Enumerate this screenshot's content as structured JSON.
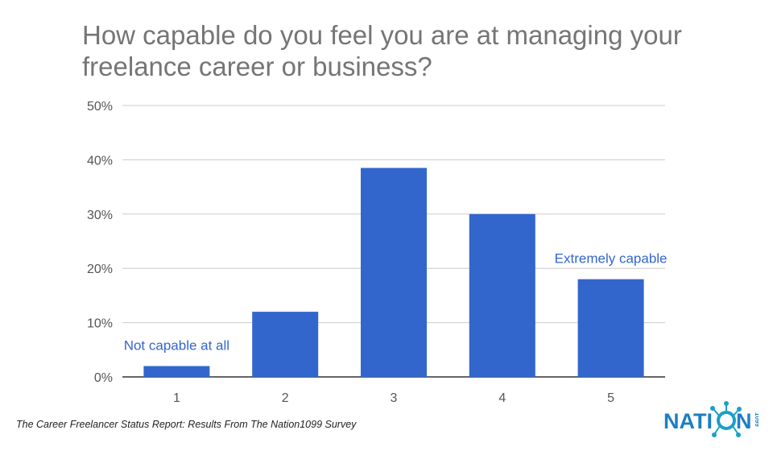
{
  "chart_data": {
    "type": "bar",
    "title": "How capable do you feel you are at managing your freelance career or business?",
    "categories": [
      "1",
      "2",
      "3",
      "4",
      "5"
    ],
    "values": [
      2,
      12,
      38.5,
      30,
      18
    ],
    "ylim": [
      0,
      50
    ],
    "yticks": [
      "0%",
      "10%",
      "20%",
      "30%",
      "40%",
      "50%"
    ],
    "xlabel": "",
    "ylabel": "",
    "grid": true,
    "bar_color": "#3366cc",
    "annotations": [
      {
        "text": "Not capable at all",
        "category": "1",
        "value": 5
      },
      {
        "text": "Extremely capable",
        "category": "5",
        "value": 21
      }
    ]
  },
  "footer": {
    "source": "The Career Freelancer Status Report: Results From The Nation1099 Survey"
  },
  "logo": {
    "text": "NATION",
    "suffix": "1099",
    "color": "#1e7fc1",
    "accent": "#1aa0c8"
  }
}
